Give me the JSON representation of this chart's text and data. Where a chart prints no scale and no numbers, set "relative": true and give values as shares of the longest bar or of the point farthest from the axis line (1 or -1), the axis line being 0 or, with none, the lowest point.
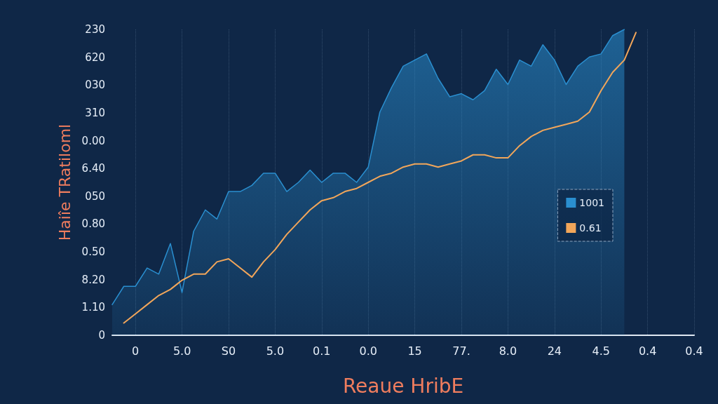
{
  "chart_data": {
    "type": "line",
    "xlabel": "Reaue HribE",
    "ylabel": "Haiîe TRatiloml",
    "relative": true,
    "categories": [
      null,
      null,
      "0",
      null,
      null,
      null,
      "5.0",
      null,
      null,
      null,
      "S0",
      null,
      null,
      null,
      "5.0",
      null,
      null,
      null,
      "0.1",
      null,
      null,
      null,
      "0.0",
      null,
      null,
      null,
      "15",
      null,
      null,
      null,
      "77.",
      null,
      null,
      null,
      "8.0",
      null,
      null,
      null,
      "24",
      null,
      null,
      null,
      "4.5",
      null,
      null,
      null,
      "0.4",
      null,
      null,
      null,
      "0.4"
    ],
    "annotations": [
      "0",
      "1.10",
      "8.20",
      "0.50",
      "0.80",
      "050",
      "6.40",
      "0.00",
      "310",
      "030",
      "620",
      "230"
    ],
    "grid": "x",
    "legend": "right",
    "marker": "none",
    "line_style": "solid",
    "series": [
      {
        "name": "1001",
        "type": "area",
        "color": "#2a8fd0",
        "values": [
          0.1,
          0.16,
          0.16,
          0.22,
          0.2,
          0.3,
          0.14,
          0.34,
          0.41,
          0.38,
          0.47,
          0.47,
          0.49,
          0.53,
          0.53,
          0.47,
          0.5,
          0.54,
          0.5,
          0.53,
          0.53,
          0.5,
          0.55,
          0.73,
          0.81,
          0.88,
          0.9,
          0.92,
          0.84,
          0.78,
          0.79,
          0.77,
          0.8,
          0.87,
          0.82,
          0.9,
          0.88,
          0.95,
          0.9,
          0.82,
          0.88,
          0.91,
          0.92,
          0.98,
          1,
          null,
          null,
          null,
          null,
          null,
          null
        ]
      },
      {
        "name": "0.61",
        "color": "#f2a65a",
        "values": [
          null,
          0.04,
          0.07,
          0.1,
          0.13,
          0.15,
          0.18,
          0.2,
          0.2,
          0.24,
          0.25,
          0.22,
          0.19,
          0.24,
          0.28,
          0.33,
          0.37,
          0.41,
          0.44,
          0.45,
          0.47,
          0.48,
          0.5,
          0.52,
          0.53,
          0.55,
          0.56,
          0.56,
          0.55,
          0.56,
          0.57,
          0.59,
          0.59,
          0.58,
          0.58,
          0.62,
          0.65,
          0.67,
          0.68,
          0.69,
          0.7,
          0.73,
          0.8,
          0.86,
          0.9,
          0.99,
          null,
          null,
          null,
          null,
          null
        ]
      }
    ]
  }
}
